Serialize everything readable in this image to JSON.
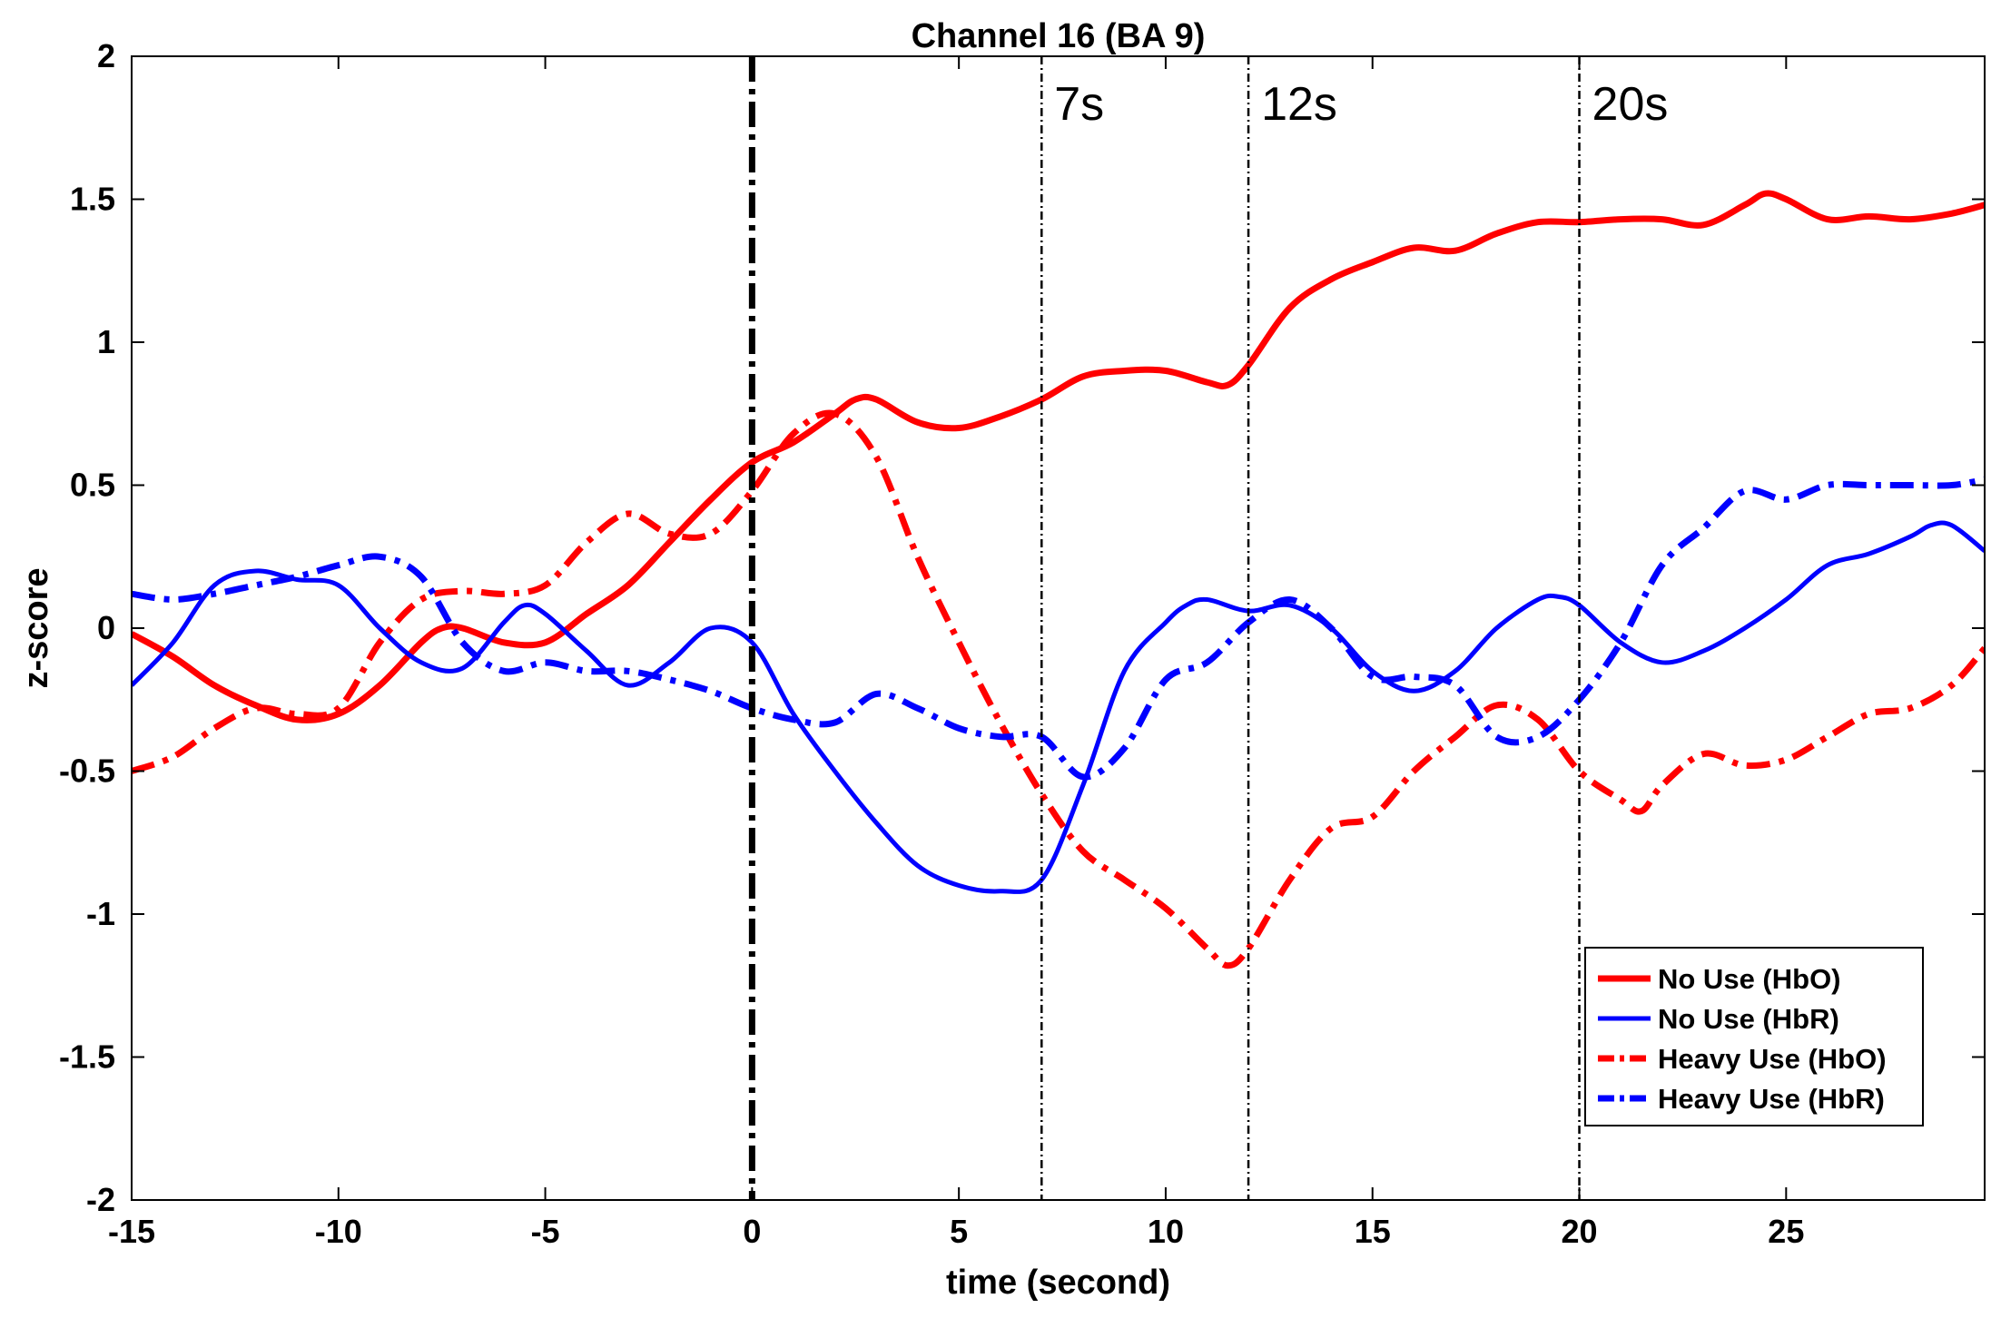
{
  "chart_data": {
    "type": "line",
    "title": "Channel 16 (BA 9)",
    "xlabel": "time (second)",
    "ylabel": "z-score",
    "xlim": [
      -15,
      29.8
    ],
    "ylim": [
      -2,
      2
    ],
    "xticks": [
      -15,
      -10,
      -5,
      0,
      5,
      10,
      15,
      20,
      25
    ],
    "yticks": [
      -2,
      -1.5,
      -1,
      -0.5,
      0,
      0.5,
      1,
      1.5,
      2
    ],
    "xtick_labels": [
      "-15",
      "-10",
      "-5",
      "0",
      "5",
      "10",
      "15",
      "20",
      "25"
    ],
    "ytick_labels": [
      "-2",
      "-1.5",
      "-1",
      "-0.5",
      "0",
      "0.5",
      "1",
      "1.5",
      "2"
    ],
    "grid": false,
    "legend_position": "bottom-right",
    "onset_line": {
      "x": 0,
      "color": "#000000",
      "style": "dashdot-thick"
    },
    "markers": [
      {
        "x": 7,
        "label": "7s"
      },
      {
        "x": 12,
        "label": "12s"
      },
      {
        "x": 20,
        "label": "20s"
      }
    ],
    "series": [
      {
        "name": "No Use (HbO)",
        "color": "#ff0000",
        "style": "solid-thick",
        "x": [
          -15,
          -14,
          -13,
          -12,
          -11,
          -10,
          -9,
          -8,
          -7.5,
          -7,
          -6,
          -5,
          -4,
          -3,
          -2,
          -1,
          0,
          1,
          2,
          2.5,
          3,
          4,
          5,
          6,
          7,
          8,
          9,
          10,
          11,
          11.5,
          12,
          13,
          14,
          15,
          16,
          17,
          18,
          19,
          20,
          21,
          22,
          23,
          24,
          24.5,
          25,
          26,
          27,
          28,
          29,
          29.8
        ],
        "y": [
          -0.02,
          -0.1,
          -0.2,
          -0.27,
          -0.32,
          -0.3,
          -0.2,
          -0.05,
          0.0,
          0.0,
          -0.05,
          -0.05,
          0.05,
          0.15,
          0.3,
          0.45,
          0.58,
          0.65,
          0.75,
          0.8,
          0.8,
          0.72,
          0.7,
          0.74,
          0.8,
          0.88,
          0.9,
          0.9,
          0.86,
          0.85,
          0.92,
          1.12,
          1.22,
          1.28,
          1.33,
          1.32,
          1.38,
          1.42,
          1.42,
          1.43,
          1.43,
          1.41,
          1.48,
          1.52,
          1.5,
          1.43,
          1.44,
          1.43,
          1.45,
          1.48
        ]
      },
      {
        "name": "No Use (HbR)",
        "color": "#0000ff",
        "style": "solid",
        "x": [
          -15,
          -14,
          -13,
          -12,
          -11,
          -10,
          -9,
          -8,
          -7,
          -6,
          -5.5,
          -5,
          -4,
          -3,
          -2,
          -1,
          0,
          1,
          2,
          3,
          4,
          5,
          6,
          7,
          8,
          9,
          10,
          10.5,
          11,
          12,
          13,
          14,
          15,
          16,
          17,
          18,
          19,
          19.5,
          20,
          21,
          22,
          23,
          24,
          25,
          26,
          27,
          28,
          28.5,
          29,
          29.8
        ],
        "y": [
          -0.2,
          -0.05,
          0.15,
          0.2,
          0.17,
          0.15,
          0.0,
          -0.12,
          -0.14,
          0.02,
          0.08,
          0.05,
          -0.08,
          -0.2,
          -0.12,
          0.0,
          -0.05,
          -0.3,
          -0.5,
          -0.68,
          -0.83,
          -0.9,
          -0.92,
          -0.88,
          -0.55,
          -0.15,
          0.02,
          0.08,
          0.1,
          0.06,
          0.08,
          0.0,
          -0.15,
          -0.22,
          -0.15,
          0.0,
          0.1,
          0.11,
          0.08,
          -0.05,
          -0.12,
          -0.08,
          0.0,
          0.1,
          0.22,
          0.26,
          0.32,
          0.36,
          0.36,
          0.27
        ]
      },
      {
        "name": "Heavy Use (HbO)",
        "color": "#ff0000",
        "style": "dashdot-thick",
        "x": [
          -15,
          -14,
          -13,
          -12,
          -11,
          -10,
          -9,
          -8,
          -7,
          -6,
          -5,
          -4,
          -3,
          -2,
          -1,
          0,
          1,
          2,
          3,
          4,
          5,
          6,
          7,
          8,
          9,
          10,
          11,
          11.5,
          12,
          13,
          14,
          15,
          16,
          17,
          18,
          19,
          20,
          21,
          21.5,
          22,
          23,
          24,
          25,
          26,
          27,
          28,
          29,
          29.8
        ],
        "y": [
          -0.5,
          -0.45,
          -0.35,
          -0.28,
          -0.3,
          -0.28,
          -0.05,
          0.1,
          0.13,
          0.12,
          0.15,
          0.3,
          0.4,
          0.33,
          0.33,
          0.48,
          0.68,
          0.75,
          0.6,
          0.25,
          -0.05,
          -0.33,
          -0.58,
          -0.78,
          -0.88,
          -0.98,
          -1.12,
          -1.18,
          -1.12,
          -0.88,
          -0.7,
          -0.66,
          -0.5,
          -0.38,
          -0.27,
          -0.32,
          -0.5,
          -0.6,
          -0.64,
          -0.55,
          -0.44,
          -0.48,
          -0.46,
          -0.38,
          -0.3,
          -0.28,
          -0.2,
          -0.07
        ]
      },
      {
        "name": "Heavy Use (HbR)",
        "color": "#0000ff",
        "style": "dashdot-thick",
        "x": [
          -15,
          -14,
          -13,
          -12,
          -11,
          -10,
          -9,
          -8,
          -7,
          -6,
          -5,
          -4,
          -3,
          -2,
          -1,
          0,
          1,
          2,
          3,
          4,
          5,
          6,
          7,
          8,
          9,
          10,
          11,
          12,
          13,
          14,
          15,
          16,
          17,
          18,
          19,
          20,
          21,
          22,
          23,
          24,
          25,
          26,
          27,
          28,
          29,
          29.8
        ],
        "y": [
          0.12,
          0.1,
          0.12,
          0.15,
          0.18,
          0.22,
          0.25,
          0.18,
          -0.05,
          -0.15,
          -0.12,
          -0.15,
          -0.15,
          -0.18,
          -0.22,
          -0.28,
          -0.32,
          -0.33,
          -0.23,
          -0.28,
          -0.35,
          -0.38,
          -0.38,
          -0.52,
          -0.42,
          -0.18,
          -0.12,
          0.02,
          0.1,
          0.0,
          -0.17,
          -0.17,
          -0.2,
          -0.38,
          -0.38,
          -0.25,
          -0.05,
          0.22,
          0.35,
          0.48,
          0.45,
          0.5,
          0.5,
          0.5,
          0.5,
          0.52
        ]
      }
    ]
  }
}
